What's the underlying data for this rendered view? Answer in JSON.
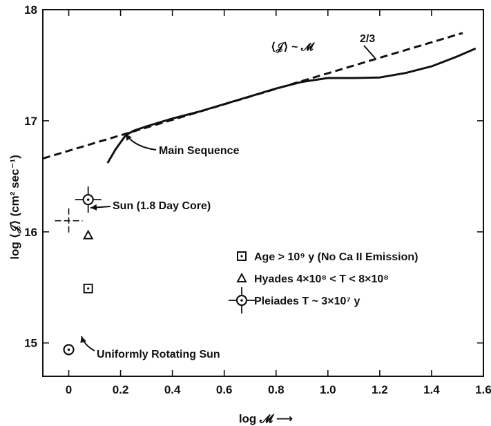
{
  "chart_data": {
    "type": "line",
    "xlabel": "log 𝓜 ⟶",
    "ylabel": "log ⟨𝒥⟩ (cm² sec⁻¹)",
    "xlim": [
      -0.1,
      1.6
    ],
    "ylim": [
      14.7,
      18.0
    ],
    "x_ticks": [
      "0",
      "0.2",
      "0.4",
      "0.6",
      "0.8",
      "1.0",
      "1.2",
      "1.4",
      "1.6"
    ],
    "y_ticks": [
      "15",
      "16",
      "17",
      "18"
    ],
    "grid": false,
    "series": [
      {
        "style": "dashed",
        "x": [
          -0.1,
          1.52
        ],
        "y": [
          16.66,
          17.79
        ]
      },
      {
        "style": "solid",
        "x": [
          0.15,
          0.18,
          0.22,
          0.25,
          0.3,
          0.4,
          0.5,
          0.6,
          0.7,
          0.8,
          0.9,
          1.0,
          1.1,
          1.2,
          1.3,
          1.4,
          1.5,
          1.57
        ],
        "y": [
          16.62,
          16.74,
          16.87,
          16.91,
          16.95,
          17.02,
          17.08,
          17.15,
          17.22,
          17.29,
          17.35,
          17.385,
          17.385,
          17.39,
          17.43,
          17.49,
          17.58,
          17.65
        ]
      }
    ],
    "points": [
      {
        "marker": "circled-dot",
        "x": 0.0,
        "y": 14.94
      },
      {
        "marker": "square-dot",
        "x": 0.075,
        "y": 15.49
      },
      {
        "marker": "triangle",
        "x": 0.075,
        "y": 15.97
      },
      {
        "marker": "circled-dot-cross",
        "x": 0.075,
        "y": 16.29
      },
      {
        "marker": "cross",
        "x": 0.0,
        "y": 16.1
      }
    ],
    "annotations": {
      "dashed_label": "⟨𝒥⟩ ~ 𝓜",
      "dashed_label_exp": "2/3",
      "main_sequence": "Main Sequence",
      "sun_core": "Sun (1.8 Day Core)",
      "uniform_sun": "Uniformly Rotating Sun"
    },
    "legend": {
      "position": "right-middle",
      "entries": [
        {
          "marker": "square-dot",
          "label": "Age > 10⁹ y (No Ca II Emission)"
        },
        {
          "marker": "triangle",
          "label": "Hyades  4×10⁸ < T < 8×10⁸"
        },
        {
          "marker": "circled-dot-cross",
          "label": "Pleiades  T ~ 3×10⁷ y"
        }
      ]
    }
  }
}
